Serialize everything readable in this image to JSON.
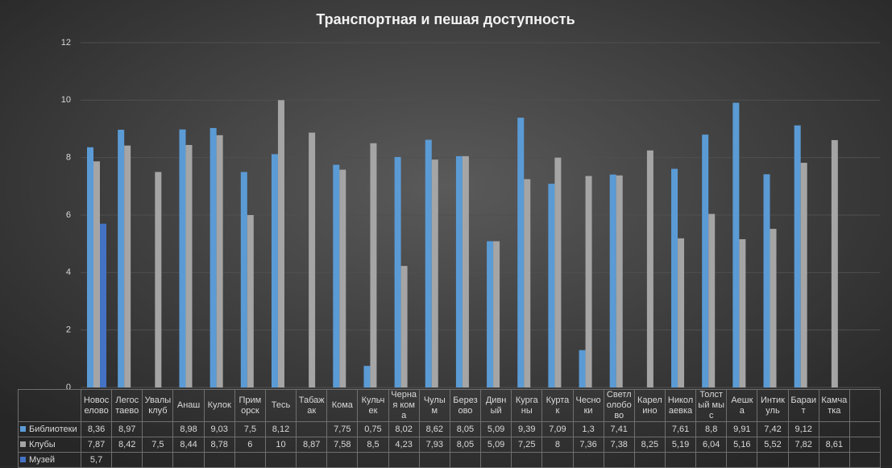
{
  "chart_data": {
    "type": "bar",
    "title": "Транспортная и пешая доступность",
    "categories": [
      "Новоселово",
      "Легостаево",
      "Увалы клуб",
      "Анаш",
      "Кулок",
      "Приморск",
      "Тесь",
      "Табажак",
      "Кома",
      "Кульчек",
      "Черная кома",
      "Чулым",
      "Березово",
      "Дивный",
      "Курганы",
      "Куртак",
      "Чесноки",
      "Светлолобово",
      "Карелино",
      "Николаевка",
      "Толстый мыс",
      "Аешка",
      "Интикуль",
      "Бараит",
      "Камчатка"
    ],
    "series": [
      {
        "name": "Библиотеки",
        "color": "#5b9bd5",
        "values": [
          8.36,
          8.97,
          null,
          8.98,
          9.03,
          7.5,
          8.12,
          null,
          7.75,
          0.75,
          8.02,
          8.62,
          8.05,
          5.09,
          9.39,
          7.09,
          1.3,
          7.41,
          null,
          7.61,
          8.8,
          9.91,
          7.42,
          9.12,
          null
        ],
        "value_labels": [
          "8,36",
          "8,97",
          null,
          "8,98",
          "9,03",
          "7,5",
          "8,12",
          null,
          "7,75",
          "0,75",
          "8,02",
          "8,62",
          "8,05",
          "5,09",
          "9,39",
          "7,09",
          "1,3",
          "7,41",
          null,
          "7,61",
          "8,8",
          "9,91",
          "7,42",
          "9,12",
          null
        ]
      },
      {
        "name": "Клубы",
        "color": "#a5a5a5",
        "values": [
          7.87,
          8.42,
          7.5,
          8.44,
          8.78,
          6,
          10,
          8.87,
          7.58,
          8.5,
          4.23,
          7.93,
          8.05,
          5.09,
          7.25,
          8,
          7.36,
          7.38,
          8.25,
          5.19,
          6.04,
          5.16,
          5.52,
          7.82,
          8.61
        ],
        "value_labels": [
          "7,87",
          "8,42",
          "7,5",
          "8,44",
          "8,78",
          "6",
          "10",
          "8,87",
          "7,58",
          "8,5",
          "4,23",
          "7,93",
          "8,05",
          "5,09",
          "7,25",
          "8",
          "7,36",
          "7,38",
          "8,25",
          "5,19",
          "6,04",
          "5,16",
          "5,52",
          "7,82",
          "8,61"
        ]
      },
      {
        "name": "Музей",
        "color": "#4472c4",
        "values": [
          5.7,
          null,
          null,
          null,
          null,
          null,
          null,
          null,
          null,
          null,
          null,
          null,
          null,
          null,
          null,
          null,
          null,
          null,
          null,
          null,
          null,
          null,
          null,
          null,
          null
        ],
        "value_labels": [
          "5,7",
          null,
          null,
          null,
          null,
          null,
          null,
          null,
          null,
          null,
          null,
          null,
          null,
          null,
          null,
          null,
          null,
          null,
          null,
          null,
          null,
          null,
          null,
          null,
          null
        ]
      }
    ],
    "ylim": [
      0,
      12
    ],
    "yticks": [
      0,
      2,
      4,
      6,
      8,
      10,
      12
    ],
    "grid": true
  }
}
